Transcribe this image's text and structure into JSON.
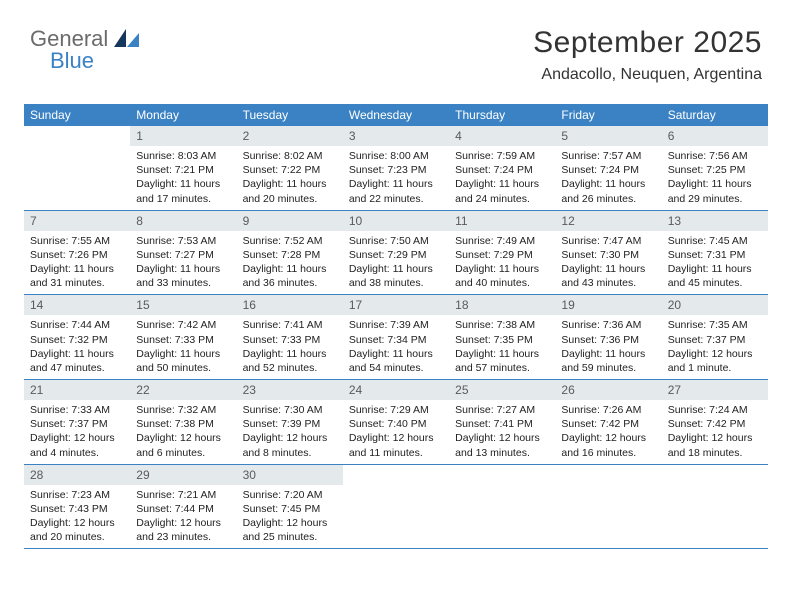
{
  "logo": {
    "word1": "General",
    "word2": "Blue",
    "color1": "#6b6b6b",
    "color2": "#3b82c4"
  },
  "header": {
    "title": "September 2025",
    "subtitle": "Andacollo, Neuquen, Argentina"
  },
  "colors": {
    "header_bar": "#3b82c4",
    "daynum_bg": "#e4e9ec",
    "week_divider": "#3b82c4",
    "text": "#222222",
    "background": "#ffffff"
  },
  "typography": {
    "title_fontsize": 30,
    "subtitle_fontsize": 16,
    "weekday_fontsize": 12,
    "daynum_fontsize": 12,
    "body_fontsize": 10.5
  },
  "weekdays": [
    "Sunday",
    "Monday",
    "Tuesday",
    "Wednesday",
    "Thursday",
    "Friday",
    "Saturday"
  ],
  "weeks": [
    [
      {
        "n": "",
        "sunrise": "",
        "sunset": "",
        "daylight": ""
      },
      {
        "n": "1",
        "sunrise": "Sunrise: 8:03 AM",
        "sunset": "Sunset: 7:21 PM",
        "daylight": "Daylight: 11 hours and 17 minutes."
      },
      {
        "n": "2",
        "sunrise": "Sunrise: 8:02 AM",
        "sunset": "Sunset: 7:22 PM",
        "daylight": "Daylight: 11 hours and 20 minutes."
      },
      {
        "n": "3",
        "sunrise": "Sunrise: 8:00 AM",
        "sunset": "Sunset: 7:23 PM",
        "daylight": "Daylight: 11 hours and 22 minutes."
      },
      {
        "n": "4",
        "sunrise": "Sunrise: 7:59 AM",
        "sunset": "Sunset: 7:24 PM",
        "daylight": "Daylight: 11 hours and 24 minutes."
      },
      {
        "n": "5",
        "sunrise": "Sunrise: 7:57 AM",
        "sunset": "Sunset: 7:24 PM",
        "daylight": "Daylight: 11 hours and 26 minutes."
      },
      {
        "n": "6",
        "sunrise": "Sunrise: 7:56 AM",
        "sunset": "Sunset: 7:25 PM",
        "daylight": "Daylight: 11 hours and 29 minutes."
      }
    ],
    [
      {
        "n": "7",
        "sunrise": "Sunrise: 7:55 AM",
        "sunset": "Sunset: 7:26 PM",
        "daylight": "Daylight: 11 hours and 31 minutes."
      },
      {
        "n": "8",
        "sunrise": "Sunrise: 7:53 AM",
        "sunset": "Sunset: 7:27 PM",
        "daylight": "Daylight: 11 hours and 33 minutes."
      },
      {
        "n": "9",
        "sunrise": "Sunrise: 7:52 AM",
        "sunset": "Sunset: 7:28 PM",
        "daylight": "Daylight: 11 hours and 36 minutes."
      },
      {
        "n": "10",
        "sunrise": "Sunrise: 7:50 AM",
        "sunset": "Sunset: 7:29 PM",
        "daylight": "Daylight: 11 hours and 38 minutes."
      },
      {
        "n": "11",
        "sunrise": "Sunrise: 7:49 AM",
        "sunset": "Sunset: 7:29 PM",
        "daylight": "Daylight: 11 hours and 40 minutes."
      },
      {
        "n": "12",
        "sunrise": "Sunrise: 7:47 AM",
        "sunset": "Sunset: 7:30 PM",
        "daylight": "Daylight: 11 hours and 43 minutes."
      },
      {
        "n": "13",
        "sunrise": "Sunrise: 7:45 AM",
        "sunset": "Sunset: 7:31 PM",
        "daylight": "Daylight: 11 hours and 45 minutes."
      }
    ],
    [
      {
        "n": "14",
        "sunrise": "Sunrise: 7:44 AM",
        "sunset": "Sunset: 7:32 PM",
        "daylight": "Daylight: 11 hours and 47 minutes."
      },
      {
        "n": "15",
        "sunrise": "Sunrise: 7:42 AM",
        "sunset": "Sunset: 7:33 PM",
        "daylight": "Daylight: 11 hours and 50 minutes."
      },
      {
        "n": "16",
        "sunrise": "Sunrise: 7:41 AM",
        "sunset": "Sunset: 7:33 PM",
        "daylight": "Daylight: 11 hours and 52 minutes."
      },
      {
        "n": "17",
        "sunrise": "Sunrise: 7:39 AM",
        "sunset": "Sunset: 7:34 PM",
        "daylight": "Daylight: 11 hours and 54 minutes."
      },
      {
        "n": "18",
        "sunrise": "Sunrise: 7:38 AM",
        "sunset": "Sunset: 7:35 PM",
        "daylight": "Daylight: 11 hours and 57 minutes."
      },
      {
        "n": "19",
        "sunrise": "Sunrise: 7:36 AM",
        "sunset": "Sunset: 7:36 PM",
        "daylight": "Daylight: 11 hours and 59 minutes."
      },
      {
        "n": "20",
        "sunrise": "Sunrise: 7:35 AM",
        "sunset": "Sunset: 7:37 PM",
        "daylight": "Daylight: 12 hours and 1 minute."
      }
    ],
    [
      {
        "n": "21",
        "sunrise": "Sunrise: 7:33 AM",
        "sunset": "Sunset: 7:37 PM",
        "daylight": "Daylight: 12 hours and 4 minutes."
      },
      {
        "n": "22",
        "sunrise": "Sunrise: 7:32 AM",
        "sunset": "Sunset: 7:38 PM",
        "daylight": "Daylight: 12 hours and 6 minutes."
      },
      {
        "n": "23",
        "sunrise": "Sunrise: 7:30 AM",
        "sunset": "Sunset: 7:39 PM",
        "daylight": "Daylight: 12 hours and 8 minutes."
      },
      {
        "n": "24",
        "sunrise": "Sunrise: 7:29 AM",
        "sunset": "Sunset: 7:40 PM",
        "daylight": "Daylight: 12 hours and 11 minutes."
      },
      {
        "n": "25",
        "sunrise": "Sunrise: 7:27 AM",
        "sunset": "Sunset: 7:41 PM",
        "daylight": "Daylight: 12 hours and 13 minutes."
      },
      {
        "n": "26",
        "sunrise": "Sunrise: 7:26 AM",
        "sunset": "Sunset: 7:42 PM",
        "daylight": "Daylight: 12 hours and 16 minutes."
      },
      {
        "n": "27",
        "sunrise": "Sunrise: 7:24 AM",
        "sunset": "Sunset: 7:42 PM",
        "daylight": "Daylight: 12 hours and 18 minutes."
      }
    ],
    [
      {
        "n": "28",
        "sunrise": "Sunrise: 7:23 AM",
        "sunset": "Sunset: 7:43 PM",
        "daylight": "Daylight: 12 hours and 20 minutes."
      },
      {
        "n": "29",
        "sunrise": "Sunrise: 7:21 AM",
        "sunset": "Sunset: 7:44 PM",
        "daylight": "Daylight: 12 hours and 23 minutes."
      },
      {
        "n": "30",
        "sunrise": "Sunrise: 7:20 AM",
        "sunset": "Sunset: 7:45 PM",
        "daylight": "Daylight: 12 hours and 25 minutes."
      },
      {
        "n": "",
        "sunrise": "",
        "sunset": "",
        "daylight": ""
      },
      {
        "n": "",
        "sunrise": "",
        "sunset": "",
        "daylight": ""
      },
      {
        "n": "",
        "sunrise": "",
        "sunset": "",
        "daylight": ""
      },
      {
        "n": "",
        "sunrise": "",
        "sunset": "",
        "daylight": ""
      }
    ]
  ]
}
